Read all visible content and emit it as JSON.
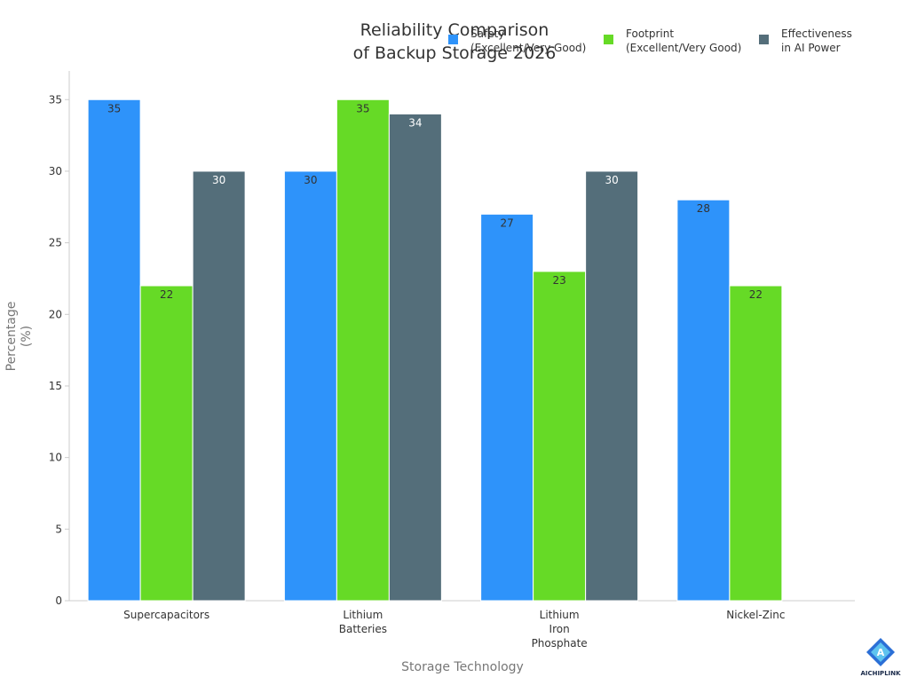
{
  "chart_data": {
    "type": "bar",
    "title_lines": [
      "Reliability Comparison",
      "of Backup Storage 2026"
    ],
    "xlabel": "Storage Technology",
    "ylabel_lines": [
      "Percentage",
      "(%)"
    ],
    "ylim": [
      0,
      37
    ],
    "yticks": [
      0,
      5,
      10,
      15,
      20,
      25,
      30,
      35
    ],
    "grid": false,
    "legend_position": "top-right",
    "categories": [
      {
        "label": "Supercapacitors",
        "lines": [
          "Supercapacitors"
        ]
      },
      {
        "label": "Lithium Batteries",
        "lines": [
          "Lithium",
          "Batteries"
        ]
      },
      {
        "label": "Lithium Iron Phosphate",
        "lines": [
          "Lithium",
          "Iron",
          "Phosphate"
        ]
      },
      {
        "label": "Nickel-Zinc",
        "lines": [
          "Nickel-Zinc"
        ]
      }
    ],
    "series": [
      {
        "name": "Safety (Excellent/Very Good)",
        "name_lines": [
          "Safety",
          "(Excellent/Very Good)"
        ],
        "color": "#2E93FA",
        "label_color": "#333333",
        "values": [
          35,
          30,
          27,
          28
        ]
      },
      {
        "name": "Footprint (Excellent/Very Good)",
        "name_lines": [
          "Footprint",
          "(Excellent/Very Good)"
        ],
        "color": "#66DA26",
        "label_color": "#333333",
        "values": [
          22,
          35,
          23,
          22
        ]
      },
      {
        "name": "Effectiveness in AI Power",
        "name_lines": [
          "Effectiveness",
          "in AI Power"
        ],
        "color": "#546E7A",
        "label_color": "#ffffff",
        "values": [
          30,
          34,
          30,
          null
        ]
      }
    ]
  },
  "branding": {
    "logo_text": "AICHIPLINK",
    "logo_letter": "A"
  }
}
